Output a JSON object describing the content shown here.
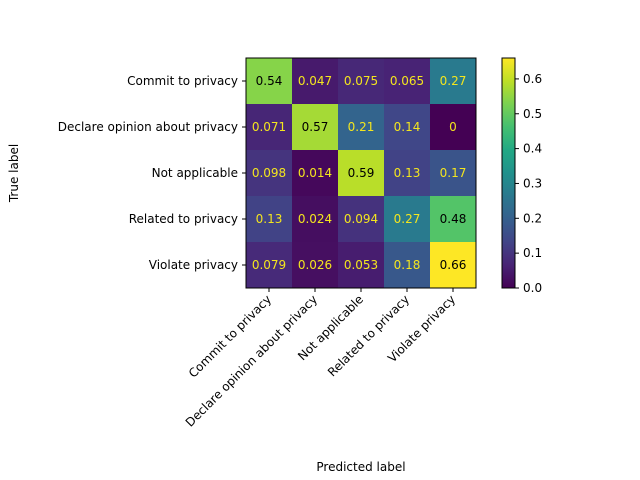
{
  "chart_data": {
    "type": "heatmap",
    "title": "",
    "xlabel": "Predicted label",
    "ylabel": "True label",
    "x_categories": [
      "Commit to privacy",
      "Declare opinion about privacy",
      "Not applicable",
      "Related to privacy",
      "Violate privacy"
    ],
    "y_categories": [
      "Commit to privacy",
      "Declare opinion about privacy",
      "Not applicable",
      "Related to privacy",
      "Violate privacy"
    ],
    "values": [
      [
        0.54,
        0.047,
        0.075,
        0.065,
        0.27
      ],
      [
        0.071,
        0.57,
        0.21,
        0.14,
        0
      ],
      [
        0.098,
        0.014,
        0.59,
        0.13,
        0.17
      ],
      [
        0.13,
        0.024,
        0.094,
        0.27,
        0.48
      ],
      [
        0.079,
        0.026,
        0.053,
        0.18,
        0.66
      ]
    ],
    "value_labels": [
      [
        "0.54",
        "0.047",
        "0.075",
        "0.065",
        "0.27"
      ],
      [
        "0.071",
        "0.57",
        "0.21",
        "0.14",
        "0"
      ],
      [
        "0.098",
        "0.014",
        "0.59",
        "0.13",
        "0.17"
      ],
      [
        "0.13",
        "0.024",
        "0.094",
        "0.27",
        "0.48"
      ],
      [
        "0.079",
        "0.026",
        "0.053",
        "0.18",
        "0.66"
      ]
    ],
    "colormap": "viridis",
    "colorbar": {
      "range": [
        0,
        0.66
      ],
      "ticks": [
        0.0,
        0.1,
        0.2,
        0.3,
        0.4,
        0.5,
        0.6
      ],
      "tick_labels": [
        "0.0",
        "0.1",
        "0.2",
        "0.3",
        "0.4",
        "0.5",
        "0.6"
      ]
    },
    "text_colors": {
      "dark_bg": "#f4e61e",
      "light_bg": "#000000"
    },
    "grid": false
  }
}
